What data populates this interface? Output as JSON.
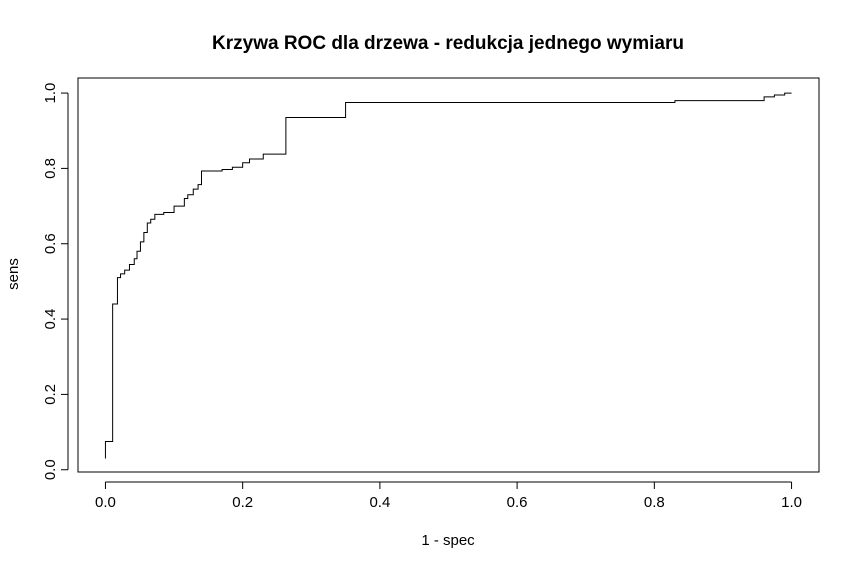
{
  "chart_data": {
    "type": "line",
    "title": "Krzywa ROC dla drzewa - redukcja jednego wymiaru",
    "xlabel": "1 - spec",
    "ylabel": "sens",
    "xlim": [
      -0.04,
      1.04
    ],
    "ylim": [
      -0.006,
      1.04
    ],
    "grid": false,
    "legend": "none",
    "step": true,
    "xticks": [
      "0.0",
      "0.2",
      "0.4",
      "0.6",
      "0.8",
      "1.0"
    ],
    "yticks": [
      "0.0",
      "0.2",
      "0.4",
      "0.6",
      "0.8",
      "1.0"
    ],
    "line_color": "#000000",
    "x": [
      0.0,
      0.0,
      0.0105,
      0.0105,
      0.0175,
      0.0175,
      0.022,
      0.022,
      0.028,
      0.028,
      0.035,
      0.035,
      0.042,
      0.042,
      0.046,
      0.046,
      0.051,
      0.051,
      0.056,
      0.056,
      0.061,
      0.061,
      0.066,
      0.066,
      0.072,
      0.072,
      0.085,
      0.085,
      0.1,
      0.1,
      0.115,
      0.115,
      0.12,
      0.12,
      0.128,
      0.128,
      0.135,
      0.135,
      0.14,
      0.14,
      0.17,
      0.17,
      0.185,
      0.185,
      0.2,
      0.2,
      0.21,
      0.21,
      0.23,
      0.23,
      0.263,
      0.263,
      0.35,
      0.35,
      0.83,
      0.83,
      0.96,
      0.96,
      0.975,
      0.975,
      0.99,
      0.99,
      1.0
    ],
    "y": [
      0.03,
      0.075,
      0.075,
      0.44,
      0.44,
      0.51,
      0.51,
      0.52,
      0.52,
      0.53,
      0.53,
      0.545,
      0.545,
      0.56,
      0.56,
      0.58,
      0.58,
      0.605,
      0.605,
      0.63,
      0.63,
      0.655,
      0.655,
      0.665,
      0.665,
      0.678,
      0.678,
      0.683,
      0.683,
      0.7,
      0.7,
      0.72,
      0.72,
      0.73,
      0.73,
      0.745,
      0.745,
      0.757,
      0.757,
      0.793,
      0.793,
      0.797,
      0.797,
      0.803,
      0.803,
      0.815,
      0.815,
      0.825,
      0.825,
      0.838,
      0.838,
      0.935,
      0.935,
      0.975,
      0.975,
      0.98,
      0.98,
      0.99,
      0.99,
      0.995,
      0.995,
      1.0,
      1.0
    ]
  }
}
